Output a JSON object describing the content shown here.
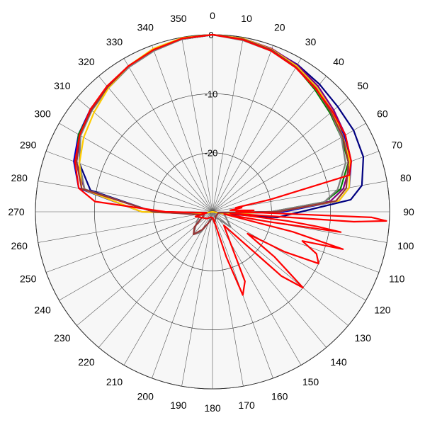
{
  "chart_data": {
    "type": "polar-line",
    "title": "",
    "angle_direction": "clockwise",
    "zero_angle_position": "top",
    "angle_ticks": [
      0,
      10,
      20,
      30,
      40,
      50,
      60,
      70,
      80,
      90,
      100,
      110,
      120,
      130,
      140,
      150,
      160,
      170,
      180,
      190,
      200,
      210,
      220,
      230,
      240,
      250,
      260,
      270,
      280,
      290,
      300,
      310,
      320,
      330,
      340,
      350
    ],
    "angle_tick_labels": [
      "0",
      "10",
      "20",
      "30",
      "40",
      "50",
      "60",
      "70",
      "80",
      "90",
      "100",
      "110",
      "120",
      "130",
      "140",
      "150",
      "160",
      "170",
      "180",
      "190",
      "200",
      "210",
      "220",
      "230",
      "240",
      "250",
      "260",
      "270",
      "280",
      "290",
      "300",
      "310",
      "320",
      "330",
      "340",
      "350"
    ],
    "radial_ticks": [
      0,
      -10,
      -20
    ],
    "radial_tick_labels": [
      "0",
      "-10",
      "-20"
    ],
    "radial_range": [
      -30,
      0
    ],
    "background": "#f7f7f7",
    "series": [
      {
        "color": "#0000cc",
        "points": [
          [
            0,
            0
          ],
          [
            10,
            -0.3
          ],
          [
            20,
            -0.8
          ],
          [
            30,
            -1.5
          ],
          [
            40,
            -2.5
          ],
          [
            50,
            -3.5
          ],
          [
            60,
            -4.2
          ],
          [
            70,
            -5
          ],
          [
            80,
            -6.5
          ],
          [
            85,
            -8.5
          ],
          [
            90,
            -18
          ],
          [
            100,
            -28
          ],
          [
            180,
            -30
          ],
          [
            260,
            -28
          ],
          [
            270,
            -18
          ],
          [
            280,
            -7
          ],
          [
            290,
            -5
          ],
          [
            300,
            -3.8
          ],
          [
            310,
            -3
          ],
          [
            320,
            -2.3
          ],
          [
            330,
            -1.5
          ],
          [
            340,
            -0.8
          ],
          [
            350,
            -0.2
          ],
          [
            360,
            0
          ]
        ]
      },
      {
        "color": "#000080",
        "points": [
          [
            0,
            0
          ],
          [
            10,
            -0.3
          ],
          [
            20,
            -0.7
          ],
          [
            30,
            -1.2
          ],
          [
            40,
            -1.8
          ],
          [
            50,
            -2.3
          ],
          [
            60,
            -2.4
          ],
          [
            70,
            -2.8
          ],
          [
            80,
            -4.3
          ],
          [
            85,
            -6.5
          ],
          [
            90,
            -15
          ],
          [
            95,
            -19
          ],
          [
            100,
            -28
          ],
          [
            180,
            -30
          ],
          [
            260,
            -29
          ],
          [
            270,
            -20
          ],
          [
            280,
            -9
          ],
          [
            290,
            -6
          ],
          [
            300,
            -4
          ],
          [
            310,
            -3
          ],
          [
            320,
            -2.5
          ],
          [
            330,
            -1.5
          ],
          [
            340,
            -0.8
          ],
          [
            350,
            -0.3
          ],
          [
            360,
            0
          ]
        ]
      },
      {
        "color": "#008000",
        "points": [
          [
            0,
            0
          ],
          [
            10,
            -0.4
          ],
          [
            20,
            -0.9
          ],
          [
            30,
            -1.7
          ],
          [
            40,
            -3
          ],
          [
            50,
            -4
          ],
          [
            60,
            -4.8
          ],
          [
            70,
            -5.5
          ],
          [
            80,
            -8
          ],
          [
            85,
            -11
          ],
          [
            90,
            -20
          ],
          [
            100,
            -29
          ],
          [
            180,
            -30
          ],
          [
            260,
            -29
          ],
          [
            270,
            -20
          ],
          [
            280,
            -8
          ],
          [
            290,
            -5.5
          ],
          [
            300,
            -3.8
          ],
          [
            310,
            -3.2
          ],
          [
            320,
            -2.6
          ],
          [
            330,
            -1.6
          ],
          [
            340,
            -0.9
          ],
          [
            350,
            -0.3
          ],
          [
            360,
            0
          ]
        ]
      },
      {
        "color": "#800080",
        "points": [
          [
            0,
            0
          ],
          [
            10,
            -0.2
          ],
          [
            20,
            -0.6
          ],
          [
            30,
            -1.3
          ],
          [
            40,
            -2.2
          ],
          [
            50,
            -3.2
          ],
          [
            60,
            -4
          ],
          [
            70,
            -5
          ],
          [
            80,
            -7.5
          ],
          [
            85,
            -10
          ],
          [
            90,
            -20
          ],
          [
            100,
            -29
          ],
          [
            180,
            -30
          ],
          [
            260,
            -29
          ],
          [
            270,
            -20
          ],
          [
            280,
            -8
          ],
          [
            290,
            -5.5
          ],
          [
            300,
            -4
          ],
          [
            310,
            -3.2
          ],
          [
            320,
            -2.4
          ],
          [
            330,
            -1.6
          ],
          [
            340,
            -0.9
          ],
          [
            350,
            -0.3
          ],
          [
            360,
            0
          ]
        ]
      },
      {
        "color": "#808080",
        "points": [
          [
            0,
            0
          ],
          [
            10,
            -0.5
          ],
          [
            20,
            -1
          ],
          [
            30,
            -1.8
          ],
          [
            40,
            -2.8
          ],
          [
            50,
            -3.8
          ],
          [
            60,
            -4.8
          ],
          [
            70,
            -6
          ],
          [
            80,
            -8.5
          ],
          [
            85,
            -11
          ],
          [
            90,
            -20
          ],
          [
            100,
            -28
          ],
          [
            130,
            -26
          ],
          [
            150,
            -29
          ],
          [
            180,
            -30
          ],
          [
            200,
            -28
          ],
          [
            210,
            -26
          ],
          [
            220,
            -25
          ],
          [
            240,
            -27
          ],
          [
            260,
            -28
          ],
          [
            270,
            -20
          ],
          [
            280,
            -8
          ],
          [
            290,
            -6
          ],
          [
            300,
            -4.2
          ],
          [
            310,
            -3.3
          ],
          [
            320,
            -2.6
          ],
          [
            330,
            -1.7
          ],
          [
            340,
            -1
          ],
          [
            350,
            -0.3
          ],
          [
            360,
            0
          ]
        ]
      },
      {
        "color": "#ffcc00",
        "points": [
          [
            0,
            0
          ],
          [
            10,
            -0.2
          ],
          [
            20,
            -0.7
          ],
          [
            30,
            -1.5
          ],
          [
            40,
            -2.5
          ],
          [
            50,
            -3.5
          ],
          [
            60,
            -4.5
          ],
          [
            70,
            -5.2
          ],
          [
            80,
            -6.5
          ],
          [
            85,
            -8.5
          ],
          [
            90,
            -19
          ],
          [
            100,
            -28
          ],
          [
            180,
            -30
          ],
          [
            260,
            -28
          ],
          [
            270,
            -18
          ],
          [
            280,
            -7.5
          ],
          [
            290,
            -6
          ],
          [
            300,
            -4.8
          ],
          [
            310,
            -3.8
          ],
          [
            320,
            -2.6
          ],
          [
            330,
            -1.5
          ],
          [
            340,
            -0.6
          ],
          [
            350,
            -0.1
          ],
          [
            360,
            0
          ]
        ]
      },
      {
        "color": "#993333",
        "points": [
          [
            0,
            0
          ],
          [
            10,
            -0.3
          ],
          [
            20,
            -0.8
          ],
          [
            30,
            -1.7
          ],
          [
            40,
            -2.7
          ],
          [
            50,
            -3.8
          ],
          [
            60,
            -4.5
          ],
          [
            70,
            -5.5
          ],
          [
            80,
            -7
          ],
          [
            85,
            -9
          ],
          [
            90,
            -19
          ],
          [
            100,
            -29
          ],
          [
            150,
            -29
          ],
          [
            170,
            -28
          ],
          [
            180,
            -29
          ],
          [
            200,
            -28
          ],
          [
            210,
            -26.5
          ],
          [
            220,
            -25
          ],
          [
            230,
            -26
          ],
          [
            250,
            -28.5
          ],
          [
            270,
            -20
          ],
          [
            280,
            -7.5
          ],
          [
            290,
            -5.5
          ],
          [
            300,
            -4
          ],
          [
            310,
            -3.2
          ],
          [
            320,
            -2.4
          ],
          [
            330,
            -1.5
          ],
          [
            340,
            -0.8
          ],
          [
            350,
            -0.2
          ],
          [
            360,
            0
          ]
        ]
      },
      {
        "color": "#ff0000",
        "points": [
          [
            0,
            0
          ],
          [
            10,
            -0.4
          ],
          [
            20,
            -1
          ],
          [
            30,
            -1.8
          ],
          [
            40,
            -2.8
          ],
          [
            50,
            -3.5
          ],
          [
            60,
            -4
          ],
          [
            70,
            -5
          ],
          [
            75,
            -6
          ],
          [
            78,
            -20
          ],
          [
            80,
            -26
          ],
          [
            82,
            -25
          ],
          [
            85,
            -27
          ],
          [
            88,
            -23
          ],
          [
            90,
            -26
          ],
          [
            91,
            -22
          ],
          [
            92,
            -3
          ],
          [
            93,
            -0.5
          ],
          [
            94,
            -6
          ],
          [
            95,
            -27
          ],
          [
            97,
            -17
          ],
          [
            98,
            -12
          ],
          [
            99,
            -8
          ],
          [
            100,
            -20
          ],
          [
            101,
            -28
          ],
          [
            104,
            -16
          ],
          [
            106,
            -7
          ],
          [
            108,
            -14
          ],
          [
            112,
            -11
          ],
          [
            116,
            -10
          ],
          [
            119,
            -16
          ],
          [
            122,
            -23
          ],
          [
            126,
            -17
          ],
          [
            130,
            -10
          ],
          [
            133,
            -14
          ],
          [
            140,
            -27
          ],
          [
            150,
            -24
          ],
          [
            155,
            -17
          ],
          [
            160,
            -15
          ],
          [
            163,
            -22
          ],
          [
            168,
            -28
          ],
          [
            180,
            -29
          ],
          [
            200,
            -29
          ],
          [
            220,
            -28.5
          ],
          [
            240,
            -28
          ],
          [
            255,
            -27
          ],
          [
            260,
            -29
          ],
          [
            270,
            -22
          ],
          [
            275,
            -10
          ],
          [
            280,
            -7
          ],
          [
            290,
            -5.2
          ],
          [
            300,
            -4
          ],
          [
            310,
            -3
          ],
          [
            320,
            -2.2
          ],
          [
            330,
            -1.5
          ],
          [
            340,
            -0.8
          ],
          [
            350,
            -0.2
          ],
          [
            360,
            0
          ]
        ]
      }
    ]
  }
}
